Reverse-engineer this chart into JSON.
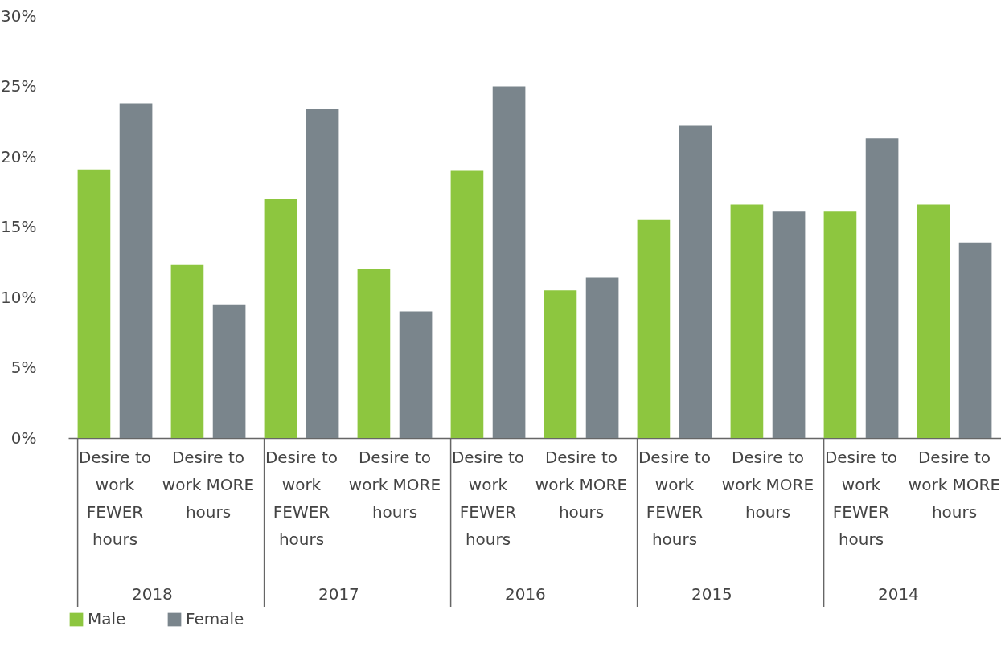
{
  "chart_data": {
    "type": "bar",
    "categories": [
      "Desire to work FEWER hours",
      "Desire to work MORE hours",
      "Desire to work FEWER hours",
      "Desire to work MORE hours",
      "Desire to work FEWER hours",
      "Desire to work MORE hours",
      "Desire to work FEWER hours",
      "Desire to work MORE hours",
      "Desire to work FEWER hours",
      "Desire to work MORE hours"
    ],
    "series": [
      {
        "name": "Male",
        "color": "#8dc63f",
        "values": [
          19.1,
          12.3,
          17.0,
          12.0,
          19.0,
          10.5,
          15.5,
          16.6,
          16.1,
          16.6
        ]
      },
      {
        "name": "Female",
        "color": "#7a858c",
        "values": [
          23.8,
          9.5,
          23.4,
          9.0,
          25.0,
          11.4,
          22.2,
          16.1,
          21.3,
          13.9
        ]
      }
    ],
    "annotations": [
      "2018",
      "2017",
      "2016",
      "2015",
      "2014"
    ],
    "ylim": [
      0,
      30
    ],
    "yticks": [
      {
        "value": 0,
        "label": "0%"
      },
      {
        "value": 5,
        "label": "5%"
      },
      {
        "value": 10,
        "label": "10%"
      },
      {
        "value": 15,
        "label": "15%"
      },
      {
        "value": 20,
        "label": "20%"
      },
      {
        "value": 25,
        "label": "25%"
      },
      {
        "value": 30,
        "label": "30%"
      }
    ],
    "grid": false,
    "legend": "bottom"
  }
}
